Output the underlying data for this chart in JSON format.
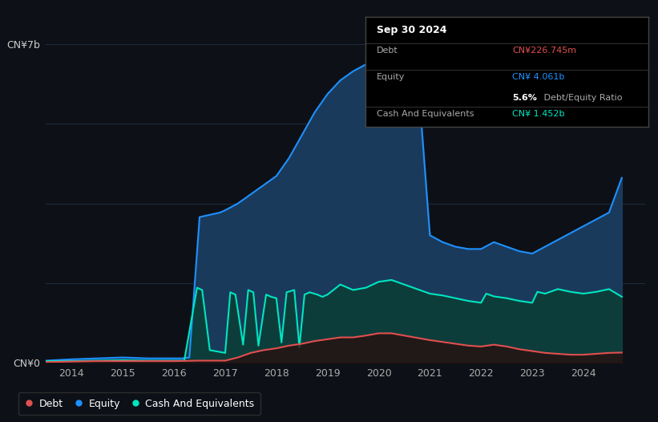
{
  "bg_color": "#0d1117",
  "plot_bg_color": "#0d1117",
  "grid_color": "#1e2a3a",
  "equity_color": "#1e90ff",
  "equity_fill": "#1a3a5c",
  "debt_color": "#e05050",
  "cash_color": "#00e5c0",
  "cash_fill": "#0d3d3a",
  "tooltip_bg": "#000000",
  "tooltip_border": "#444444",
  "tooltip_title": "Sep 30 2024",
  "tooltip_debt_label": "Debt",
  "tooltip_debt_value": "CN¥226.745m",
  "tooltip_equity_label": "Equity",
  "tooltip_equity_value": "CN¥ 4.061b",
  "tooltip_ratio_bold": "5.6%",
  "tooltip_ratio_rest": " Debt/Equity Ratio",
  "tooltip_cash_label": "Cash And Equivalents",
  "tooltip_cash_value": "CN¥ 1.452b",
  "legend_labels": [
    "Debt",
    "Equity",
    "Cash And Equivalents"
  ],
  "equity_data_x": [
    2013.0,
    2013.5,
    2014.0,
    2014.5,
    2015.0,
    2015.5,
    2016.0,
    2016.15,
    2016.3,
    2016.5,
    2016.7,
    2016.9,
    2017.0,
    2017.25,
    2017.5,
    2017.75,
    2018.0,
    2018.25,
    2018.5,
    2018.75,
    2019.0,
    2019.25,
    2019.5,
    2019.75,
    2020.0,
    2020.25,
    2020.5,
    2020.75,
    2021.0,
    2021.25,
    2021.5,
    2021.75,
    2022.0,
    2022.25,
    2022.5,
    2022.75,
    2023.0,
    2023.25,
    2023.5,
    2023.75,
    2024.0,
    2024.25,
    2024.5,
    2024.75
  ],
  "equity_data_y": [
    0.05,
    0.05,
    0.08,
    0.1,
    0.12,
    0.1,
    0.1,
    0.1,
    0.12,
    3.2,
    3.25,
    3.3,
    3.35,
    3.5,
    3.7,
    3.9,
    4.1,
    4.5,
    5.0,
    5.5,
    5.9,
    6.2,
    6.4,
    6.55,
    6.65,
    6.7,
    6.6,
    6.5,
    2.8,
    2.65,
    2.55,
    2.5,
    2.5,
    2.65,
    2.55,
    2.45,
    2.4,
    2.55,
    2.7,
    2.85,
    3.0,
    3.15,
    3.3,
    4.061
  ],
  "debt_data_x": [
    2013.0,
    2013.5,
    2014.0,
    2014.5,
    2015.0,
    2015.5,
    2016.0,
    2016.5,
    2016.9,
    2017.0,
    2017.25,
    2017.5,
    2017.75,
    2018.0,
    2018.25,
    2018.5,
    2018.75,
    2019.0,
    2019.25,
    2019.5,
    2019.75,
    2020.0,
    2020.25,
    2020.5,
    2020.75,
    2021.0,
    2021.25,
    2021.5,
    2021.75,
    2022.0,
    2022.25,
    2022.5,
    2022.75,
    2023.0,
    2023.25,
    2023.5,
    2023.75,
    2024.0,
    2024.25,
    2024.5,
    2024.75
  ],
  "debt_data_y": [
    0.02,
    0.02,
    0.03,
    0.04,
    0.04,
    0.04,
    0.04,
    0.05,
    0.05,
    0.05,
    0.12,
    0.22,
    0.28,
    0.32,
    0.38,
    0.42,
    0.48,
    0.52,
    0.56,
    0.56,
    0.6,
    0.65,
    0.65,
    0.6,
    0.55,
    0.5,
    0.46,
    0.42,
    0.38,
    0.36,
    0.4,
    0.36,
    0.3,
    0.26,
    0.22,
    0.2,
    0.18,
    0.18,
    0.2,
    0.22,
    0.2267
  ],
  "cash_data_x": [
    2013.0,
    2013.5,
    2014.0,
    2014.5,
    2015.0,
    2015.5,
    2016.0,
    2016.2,
    2016.45,
    2016.55,
    2016.7,
    2016.85,
    2017.0,
    2017.1,
    2017.2,
    2017.35,
    2017.45,
    2017.55,
    2017.65,
    2017.8,
    2017.9,
    2018.0,
    2018.1,
    2018.2,
    2018.35,
    2018.45,
    2018.55,
    2018.65,
    2018.8,
    2018.9,
    2019.0,
    2019.25,
    2019.5,
    2019.75,
    2020.0,
    2020.25,
    2020.5,
    2020.75,
    2021.0,
    2021.25,
    2021.5,
    2021.75,
    2022.0,
    2022.1,
    2022.25,
    2022.5,
    2022.75,
    2023.0,
    2023.1,
    2023.25,
    2023.5,
    2023.75,
    2024.0,
    2024.25,
    2024.5,
    2024.75
  ],
  "cash_data_y": [
    0.03,
    0.04,
    0.04,
    0.05,
    0.06,
    0.05,
    0.05,
    0.05,
    1.65,
    1.6,
    0.28,
    0.25,
    0.22,
    1.55,
    1.5,
    0.4,
    1.6,
    1.55,
    0.38,
    1.5,
    1.45,
    1.42,
    0.45,
    1.55,
    1.6,
    0.35,
    1.5,
    1.55,
    1.5,
    1.45,
    1.5,
    1.72,
    1.6,
    1.65,
    1.78,
    1.82,
    1.72,
    1.62,
    1.52,
    1.48,
    1.42,
    1.36,
    1.32,
    1.52,
    1.46,
    1.42,
    1.36,
    1.32,
    1.56,
    1.52,
    1.62,
    1.56,
    1.52,
    1.56,
    1.62,
    1.452
  ],
  "ylim": [
    0,
    7.5
  ],
  "xlim": [
    2013.5,
    2025.2
  ],
  "ytick_vals": [
    0,
    7
  ],
  "ytick_labels": [
    "CN¥0",
    "CN¥7b"
  ],
  "xtick_vals": [
    2014,
    2015,
    2016,
    2017,
    2018,
    2019,
    2020,
    2021,
    2022,
    2023,
    2024
  ],
  "xtick_labels": [
    "2014",
    "2015",
    "2016",
    "2017",
    "2018",
    "2019",
    "2020",
    "2021",
    "2022",
    "2023",
    "2024"
  ],
  "grid_yvals": [
    0,
    1.75,
    3.5,
    5.25,
    7.0
  ]
}
